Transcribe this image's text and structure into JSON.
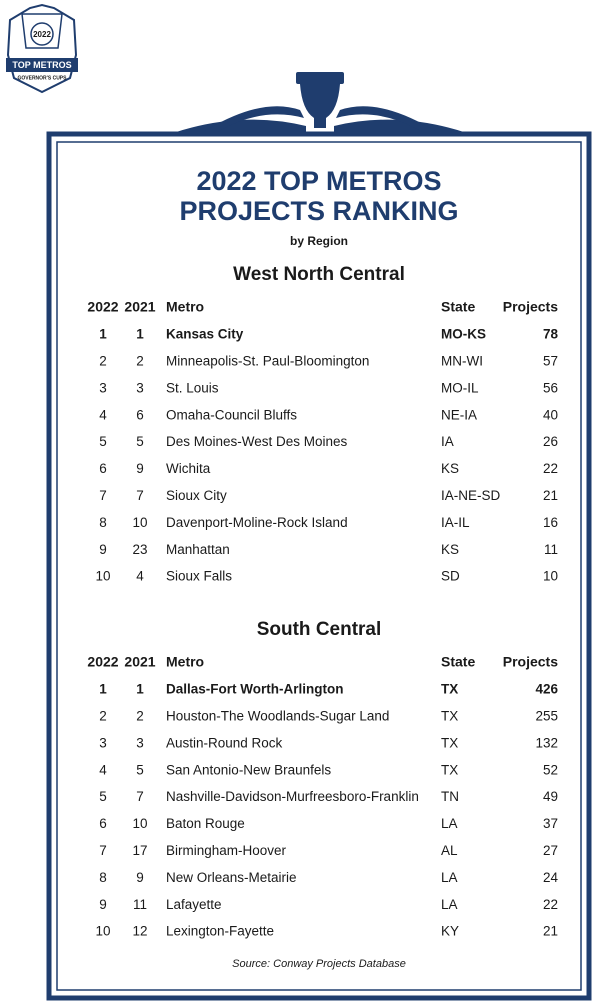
{
  "badge": {
    "year": "2022",
    "title": "TOP METROS",
    "subtitle": "GOVERNOR'S CUPS"
  },
  "header": {
    "title_line1": "2022 TOP METROS",
    "title_line2": "PROJECTS RANKING",
    "subtitle": "by Region"
  },
  "sections": [
    {
      "title": "West North Central",
      "columns": [
        "2022",
        "2021",
        "Metro",
        "State",
        "Projects"
      ],
      "rows": [
        [
          1,
          1,
          "Kansas City",
          "MO-KS",
          78
        ],
        [
          2,
          2,
          "Minneapolis-St. Paul-Bloomington",
          "MN-WI",
          57
        ],
        [
          3,
          3,
          "St. Louis",
          "MO-IL",
          56
        ],
        [
          4,
          6,
          "Omaha-Council Bluffs",
          "NE-IA",
          40
        ],
        [
          5,
          5,
          "Des Moines-West Des Moines",
          "IA",
          26
        ],
        [
          6,
          9,
          "Wichita",
          "KS",
          22
        ],
        [
          7,
          7,
          "Sioux City",
          "IA-NE-SD",
          21
        ],
        [
          8,
          10,
          "Davenport-Moline-Rock Island",
          "IA-IL",
          16
        ],
        [
          9,
          23,
          "Manhattan",
          "KS",
          11
        ],
        [
          10,
          4,
          "Sioux Falls",
          "SD",
          10
        ]
      ]
    },
    {
      "title": "South Central",
      "columns": [
        "2022",
        "2021",
        "Metro",
        "State",
        "Projects"
      ],
      "rows": [
        [
          1,
          1,
          "Dallas-Fort Worth-Arlington",
          "TX",
          426
        ],
        [
          2,
          2,
          "Houston-The Woodlands-Sugar Land",
          "TX",
          255
        ],
        [
          3,
          3,
          "Austin-Round Rock",
          "TX",
          132
        ],
        [
          4,
          5,
          "San Antonio-New Braunfels",
          "TX",
          52
        ],
        [
          5,
          7,
          "Nashville-Davidson-Murfreesboro-Franklin",
          "TN",
          49
        ],
        [
          6,
          10,
          "Baton Rouge",
          "LA",
          37
        ],
        [
          7,
          17,
          "Birmingham-Hoover",
          "AL",
          27
        ],
        [
          8,
          9,
          "New Orleans-Metairie",
          "LA",
          24
        ],
        [
          9,
          11,
          "Lafayette",
          "LA",
          22
        ],
        [
          10,
          12,
          "Lexington-Fayette",
          "KY",
          21
        ]
      ]
    }
  ],
  "source": "Source: Conway Projects Database"
}
